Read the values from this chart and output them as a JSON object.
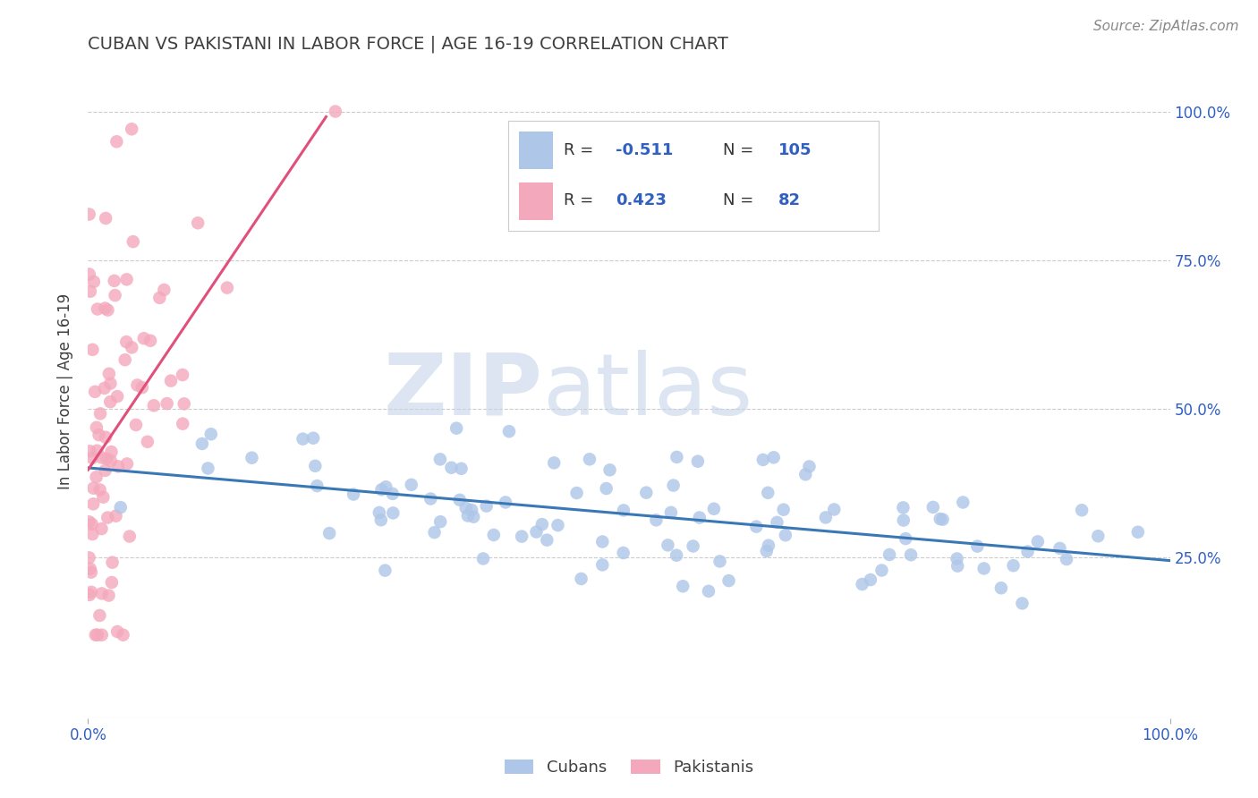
{
  "title": "CUBAN VS PAKISTANI IN LABOR FORCE | AGE 16-19 CORRELATION CHART",
  "source": "Source: ZipAtlas.com",
  "ylabel": "In Labor Force | Age 16-19",
  "xlim": [
    0.0,
    1.0
  ],
  "ylim": [
    -0.02,
    1.08
  ],
  "yticks": [
    0.25,
    0.5,
    0.75,
    1.0
  ],
  "ytick_labels_right": [
    "25.0%",
    "50.0%",
    "75.0%",
    "100.0%"
  ],
  "xtick_labels": [
    "0.0%",
    "100.0%"
  ],
  "cuban_color": "#aec6e8",
  "pakistani_color": "#f4a8bc",
  "cuban_line_color": "#3a78b5",
  "pakistani_line_color": "#e0507a",
  "cuban_R": -0.511,
  "cuban_N": 105,
  "pakistani_R": 0.423,
  "pakistani_N": 82,
  "watermark_zip": "ZIP",
  "watermark_atlas": "atlas",
  "background_color": "#ffffff",
  "grid_color": "#cccccc",
  "title_color": "#404040",
  "legend_cuban_color": "#aec6e8",
  "legend_pak_color": "#f4a8bc",
  "legend_text_color": "#333333",
  "legend_value_color": "#3060c0",
  "axis_label_color": "#3060c0"
}
